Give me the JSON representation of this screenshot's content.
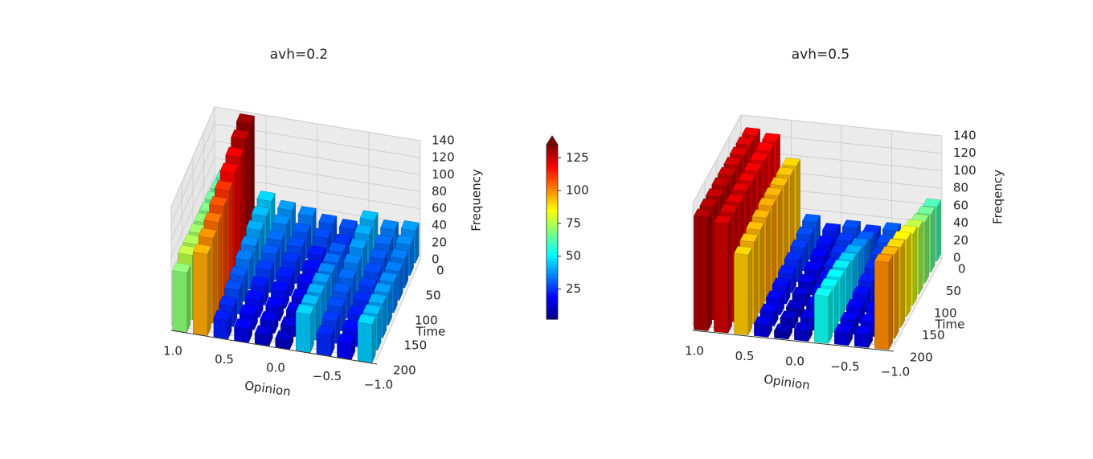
{
  "chart_data": [
    {
      "type": "bar3d",
      "title": "avh=0.2",
      "xlabel": "Opinion",
      "ylabel": "Time",
      "zlabel": "Frequency",
      "x": [
        0.9,
        0.7,
        0.5,
        0.3,
        0.1,
        -0.1,
        -0.3,
        -0.5,
        -0.7,
        -0.9
      ],
      "y": [
        0,
        25,
        50,
        75,
        100,
        125,
        150,
        175,
        200
      ],
      "values": [
        [
          62,
          132,
          45,
          38,
          35,
          30,
          28,
          42,
          35,
          38
        ],
        [
          64,
          128,
          42,
          36,
          30,
          28,
          25,
          40,
          32,
          36
        ],
        [
          66,
          122,
          40,
          32,
          28,
          22,
          30,
          38,
          30,
          34
        ],
        [
          68,
          118,
          36,
          30,
          25,
          20,
          32,
          35,
          28,
          34
        ],
        [
          70,
          112,
          34,
          26,
          22,
          18,
          35,
          32,
          26,
          36
        ],
        [
          72,
          108,
          30,
          22,
          20,
          15,
          38,
          30,
          24,
          38
        ],
        [
          74,
          104,
          28,
          20,
          16,
          14,
          40,
          28,
          22,
          40
        ],
        [
          76,
          100,
          24,
          18,
          14,
          12,
          42,
          26,
          20,
          42
        ],
        [
          70,
          96,
          22,
          16,
          12,
          10,
          45,
          24,
          18,
          45
        ]
      ],
      "xlim": [
        1,
        -1
      ],
      "xticks": [
        {
          "value": 1,
          "label": "1.0"
        },
        0.5,
        {
          "value": 0,
          "label": "0.0"
        },
        {
          "value": -0.5,
          "label": "−0.5"
        },
        {
          "value": -1,
          "label": "−1.0"
        }
      ],
      "ylim": [
        0,
        200
      ],
      "yticks": [
        0,
        50,
        100,
        150,
        200
      ],
      "zlim": [
        0,
        140
      ],
      "zticks": [
        0,
        20,
        40,
        60,
        80,
        100,
        120,
        140
      ],
      "grid": true
    },
    {
      "type": "bar3d",
      "title": "avh=0.5",
      "xlabel": "Opinion",
      "ylabel": "Time",
      "zlabel": "Freqency",
      "x": [
        0.9,
        0.7,
        0.5,
        0.3,
        0.1,
        -0.1,
        -0.3,
        -0.5,
        -0.7,
        -0.9
      ],
      "y": [
        0,
        25,
        50,
        75,
        100,
        125,
        150,
        175,
        200
      ],
      "values": [
        [
          122,
          118,
          92,
          30,
          22,
          28,
          25,
          30,
          28,
          62
        ],
        [
          124,
          120,
          94,
          28,
          20,
          26,
          30,
          28,
          26,
          66
        ],
        [
          125,
          121,
          95,
          26,
          18,
          24,
          35,
          26,
          25,
          70
        ],
        [
          126,
          122,
          96,
          24,
          16,
          22,
          40,
          24,
          24,
          76
        ],
        [
          127,
          123,
          97,
          22,
          14,
          20,
          44,
          22,
          22,
          82
        ],
        [
          128,
          124,
          96,
          20,
          12,
          18,
          48,
          20,
          20,
          88
        ],
        [
          128,
          124,
          95,
          18,
          10,
          16,
          50,
          18,
          18,
          92
        ],
        [
          129,
          125,
          94,
          16,
          10,
          14,
          52,
          16,
          16,
          96
        ],
        [
          130,
          125,
          92,
          14,
          8,
          12,
          54,
          15,
          15,
          100
        ]
      ],
      "xlim": [
        1,
        -1
      ],
      "xticks": [
        {
          "value": 1,
          "label": "1.0"
        },
        0.5,
        {
          "value": 0,
          "label": "0.0"
        },
        {
          "value": -0.5,
          "label": "−0.5"
        },
        {
          "value": -1,
          "label": "−1.0"
        }
      ],
      "ylim": [
        0,
        200
      ],
      "yticks": [
        0,
        50,
        100,
        150,
        200
      ],
      "zlim": [
        0,
        140
      ],
      "zticks": [
        0,
        20,
        40,
        60,
        80,
        100,
        120,
        140
      ],
      "grid": true
    }
  ],
  "colorbar": {
    "clim": [
      2,
      135
    ],
    "ticks": [
      25,
      50,
      75,
      100,
      125
    ],
    "extend": "max",
    "colormap": "jet"
  }
}
